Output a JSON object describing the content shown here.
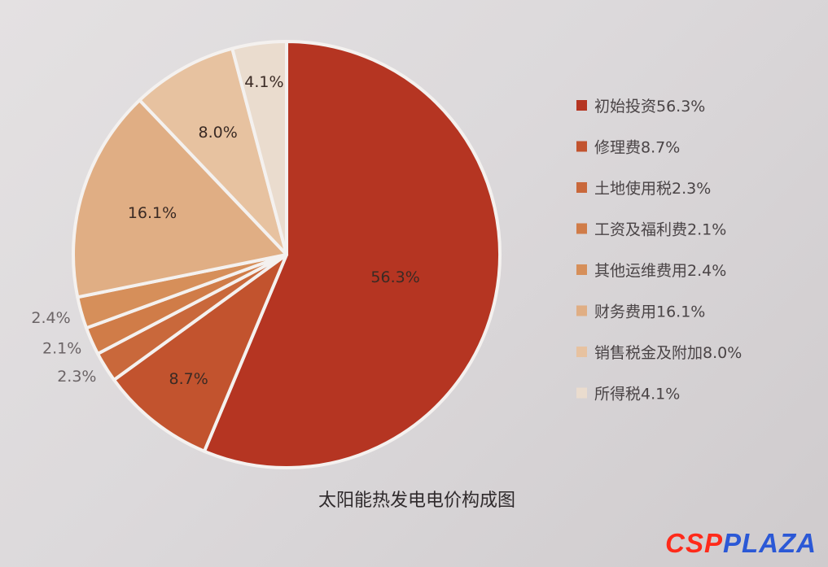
{
  "chart_data": {
    "type": "pie",
    "title": "太阳能热发电电价构成图",
    "slices": [
      {
        "name": "初始投资",
        "value": 56.3,
        "label": "56.3%",
        "color": "#b53522"
      },
      {
        "name": "修理费",
        "value": 8.7,
        "label": "8.7%",
        "color": "#c2532e"
      },
      {
        "name": "土地使用税",
        "value": 2.3,
        "label": "2.3%",
        "color": "#c9683b"
      },
      {
        "name": "工资及福利费",
        "value": 2.1,
        "label": "2.1%",
        "color": "#d07c48"
      },
      {
        "name": "其他运维费用",
        "value": 2.4,
        "label": "2.4%",
        "color": "#d68f5a"
      },
      {
        "name": "财务费用",
        "value": 16.1,
        "label": "16.1%",
        "color": "#e0ae84"
      },
      {
        "name": "销售税金及附加",
        "value": 8.0,
        "label": "8.0%",
        "color": "#e7c2a0"
      },
      {
        "name": "所得税",
        "value": 4.1,
        "label": "4.1%",
        "color": "#eadcce"
      }
    ],
    "legend": [
      "初始投资56.3%",
      "修理费8.7%",
      "土地使用税2.3%",
      "工资及福利费2.1%",
      "其他运维费用2.4%",
      "财务费用16.1%",
      "销售税金及附加8.0%",
      "所得税4.1%"
    ],
    "legend_position": "right"
  },
  "watermark": {
    "part1": "CSP",
    "part2": "PLAZA"
  }
}
